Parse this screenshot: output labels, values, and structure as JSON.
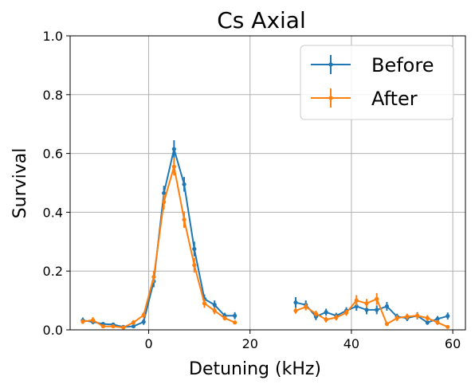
{
  "chart_data": {
    "type": "line",
    "title": "Cs Axial",
    "xlabel": "Detuning (kHz)",
    "ylabel": "Survival",
    "xlim": [
      -15.5,
      62.5
    ],
    "ylim": [
      0,
      1.0
    ],
    "xticks": [
      0,
      20,
      40,
      60
    ],
    "yticks": [
      0.0,
      0.2,
      0.4,
      0.6,
      0.8,
      1.0
    ],
    "xtick_labels": [
      "0",
      "20",
      "40",
      "60"
    ],
    "ytick_labels": [
      "0.0",
      "0.2",
      "0.4",
      "0.6",
      "0.8",
      "1.0"
    ],
    "grid": true,
    "legend_position": "top-right",
    "series": [
      {
        "name": "Before",
        "color": "#1f77b4",
        "segments": [
          {
            "x": [
              -13,
              -11,
              -9,
              -7,
              -5,
              -3,
              -1,
              1,
              3,
              5,
              7,
              9,
              11,
              13,
              15,
              17
            ],
            "y": [
              0.032,
              0.027,
              0.02,
              0.018,
              0.01,
              0.012,
              0.027,
              0.165,
              0.465,
              0.615,
              0.495,
              0.275,
              0.105,
              0.085,
              0.048,
              0.048
            ],
            "err": [
              0.01,
              0.008,
              0.006,
              0.006,
              0.005,
              0.006,
              0.01,
              0.02,
              0.025,
              0.03,
              0.025,
              0.025,
              0.015,
              0.015,
              0.01,
              0.012
            ]
          },
          {
            "x": [
              29,
              31,
              33,
              35,
              37,
              39,
              41,
              43,
              45,
              47,
              49,
              51,
              53,
              55,
              57,
              59
            ],
            "y": [
              0.093,
              0.085,
              0.045,
              0.06,
              0.048,
              0.065,
              0.08,
              0.068,
              0.068,
              0.08,
              0.045,
              0.04,
              0.048,
              0.025,
              0.037,
              0.047
            ],
            "err": [
              0.018,
              0.015,
              0.012,
              0.012,
              0.01,
              0.012,
              0.015,
              0.015,
              0.015,
              0.015,
              0.01,
              0.01,
              0.012,
              0.008,
              0.01,
              0.012
            ]
          }
        ]
      },
      {
        "name": "After",
        "color": "#ff7f0e",
        "segments": [
          {
            "x": [
              -13,
              -11,
              -9,
              -7,
              -5,
              -3,
              -1,
              1,
              3,
              5,
              7,
              9,
              11,
              13,
              15,
              17
            ],
            "y": [
              0.028,
              0.033,
              0.012,
              0.012,
              0.008,
              0.025,
              0.05,
              0.18,
              0.435,
              0.555,
              0.375,
              0.22,
              0.09,
              0.065,
              0.04,
              0.025
            ],
            "err": [
              0.008,
              0.01,
              0.005,
              0.005,
              0.004,
              0.008,
              0.01,
              0.02,
              0.025,
              0.03,
              0.028,
              0.025,
              0.015,
              0.012,
              0.008,
              0.006
            ]
          },
          {
            "x": [
              29,
              31,
              33,
              35,
              37,
              39,
              41,
              43,
              45,
              47,
              49,
              51,
              53,
              55,
              57,
              59
            ],
            "y": [
              0.065,
              0.078,
              0.055,
              0.035,
              0.042,
              0.058,
              0.1,
              0.09,
              0.105,
              0.02,
              0.04,
              0.045,
              0.048,
              0.04,
              0.025,
              0.01
            ],
            "err": [
              0.01,
              0.012,
              0.01,
              0.01,
              0.01,
              0.01,
              0.018,
              0.015,
              0.02,
              0.005,
              0.01,
              0.01,
              0.01,
              0.01,
              0.008,
              0.005
            ]
          }
        ]
      }
    ]
  }
}
